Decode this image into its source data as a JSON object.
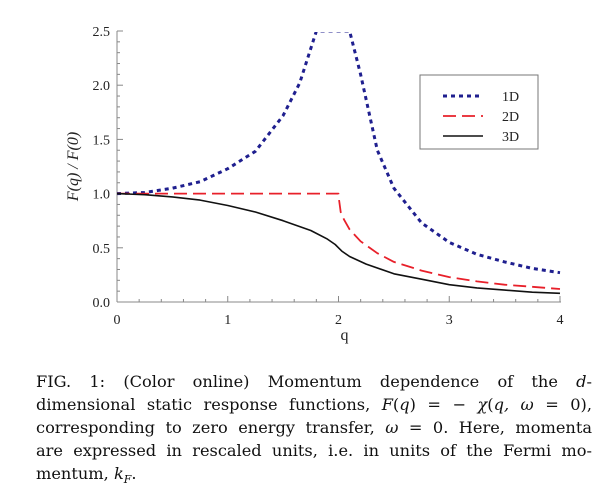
{
  "chart_data": {
    "type": "line",
    "title": "",
    "xlabel": "q",
    "ylabel": "F(q) / F(0)",
    "xlim": [
      0,
      4
    ],
    "ylim": [
      0,
      2.5
    ],
    "x_ticks": [
      "0",
      "1",
      "2",
      "3",
      "4"
    ],
    "y_ticks": [
      "0.0",
      "0.5",
      "1.0",
      "1.5",
      "2.0",
      "2.5"
    ],
    "grid": false,
    "legend_position": "top-right",
    "series": [
      {
        "name": "1D",
        "color": "#1f1f8f",
        "style": "dotted",
        "x": [
          0,
          0.25,
          0.5,
          0.75,
          1.0,
          1.25,
          1.5,
          1.65,
          1.8,
          1.9,
          1.95,
          1.985,
          2.015,
          2.05,
          2.1,
          2.2,
          2.35,
          2.5,
          2.75,
          3.0,
          3.25,
          3.5,
          3.75,
          4.0
        ],
        "y": [
          1.0,
          1.01,
          1.05,
          1.11,
          1.23,
          1.39,
          1.72,
          2.02,
          2.5,
          2.5,
          2.5,
          2.5,
          2.5,
          2.5,
          2.5,
          2.1,
          1.4,
          1.05,
          0.73,
          0.55,
          0.44,
          0.37,
          0.31,
          0.27
        ]
      },
      {
        "name": "2D",
        "color": "#e8202a",
        "style": "dashed",
        "x": [
          0,
          0.5,
          1.0,
          1.5,
          2.0,
          2.0,
          2.02,
          2.05,
          2.1,
          2.2,
          2.35,
          2.5,
          2.75,
          3.0,
          3.25,
          3.5,
          3.75,
          4.0
        ],
        "y": [
          1.0,
          1.0,
          1.0,
          1.0,
          1.0,
          0.98,
          0.83,
          0.76,
          0.67,
          0.56,
          0.45,
          0.37,
          0.29,
          0.23,
          0.19,
          0.16,
          0.14,
          0.12
        ]
      },
      {
        "name": "3D",
        "color": "#111111",
        "style": "solid",
        "x": [
          0,
          0.25,
          0.5,
          0.75,
          1.0,
          1.25,
          1.5,
          1.75,
          1.9,
          1.97,
          2.0,
          2.03,
          2.1,
          2.25,
          2.5,
          2.75,
          3.0,
          3.25,
          3.5,
          3.75,
          4.0
        ],
        "y": [
          1.0,
          0.99,
          0.97,
          0.94,
          0.89,
          0.83,
          0.75,
          0.66,
          0.58,
          0.53,
          0.5,
          0.47,
          0.42,
          0.35,
          0.26,
          0.21,
          0.16,
          0.13,
          0.11,
          0.09,
          0.08
        ]
      }
    ]
  },
  "caption": {
    "lines": [
      [
        {
          "t": "FIG. 1:   (Color online) Momentum dependence of the "
        },
        {
          "t": "d",
          "i": true
        },
        {
          "t": "-"
        }
      ],
      [
        {
          "t": "dimensional static response functions, "
        },
        {
          "t": "F",
          "i": true
        },
        {
          "t": "("
        },
        {
          "t": "q",
          "i": true
        },
        {
          "t": ") = − "
        },
        {
          "t": "χ",
          "i": true
        },
        {
          "t": "("
        },
        {
          "t": "q, ω",
          "i": true
        },
        {
          "t": " = 0),"
        }
      ],
      [
        {
          "t": "corresponding to zero energy transfer, "
        },
        {
          "t": "ω",
          "i": true
        },
        {
          "t": " = 0. Here, momenta"
        }
      ],
      [
        {
          "t": "are expressed in rescaled units, i.e. in units of the Fermi mo-"
        }
      ],
      [
        {
          "t": "mentum, "
        },
        {
          "t": "k",
          "i": true
        },
        {
          "t": "F",
          "i": true,
          "sub": true
        },
        {
          "t": "."
        }
      ]
    ]
  }
}
